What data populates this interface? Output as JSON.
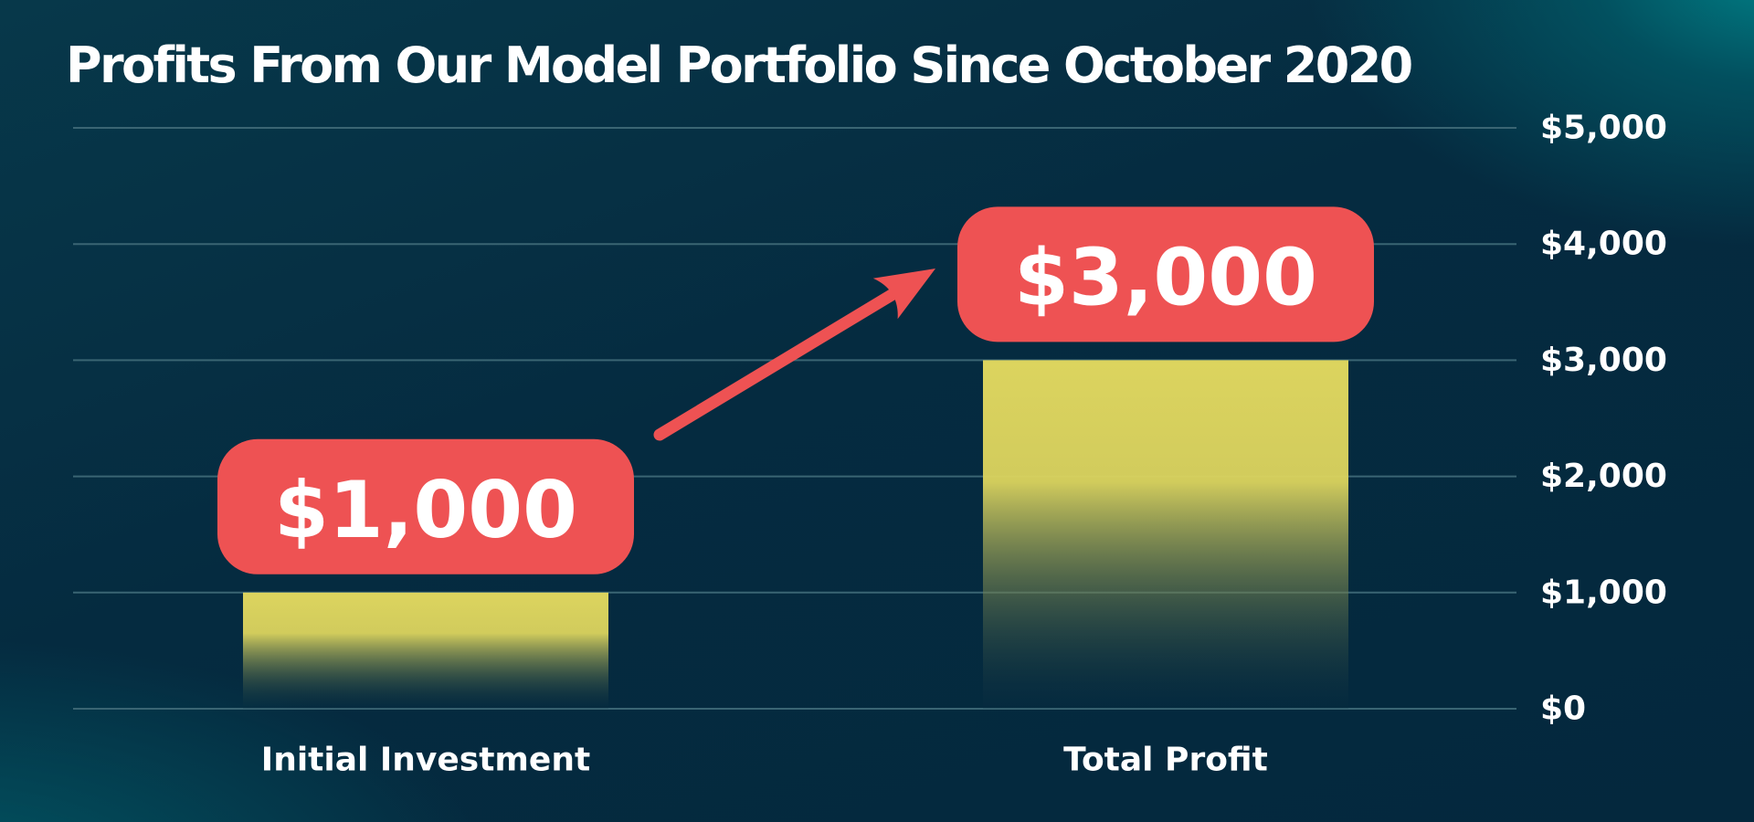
{
  "chart_data": {
    "type": "bar",
    "title": "Profits From Our Model Portfolio Since October 2020",
    "categories": [
      "Initial Investment",
      "Total Profit"
    ],
    "values": [
      1000,
      3000
    ],
    "value_labels": [
      "$1,000",
      "$3,000"
    ],
    "ylim": [
      0,
      5000
    ],
    "yticks": [
      0,
      1000,
      2000,
      3000,
      4000,
      5000
    ],
    "ytick_labels": [
      "$0",
      "$1,000",
      "$2,000",
      "$3,000",
      "$4,000",
      "$5,000"
    ],
    "xlabel": "",
    "ylabel": "",
    "yaxis_side": "right",
    "grid": true,
    "legend": false,
    "annotations": [
      {
        "type": "arrow",
        "from_category": "Initial Investment",
        "to_category": "Total Profit"
      }
    ],
    "colors": {
      "bar_top": "#dcd45e",
      "bar_bottom": "#062c40",
      "label_pill": "#ee5253",
      "text": "#ffffff",
      "gridline": "#3a6573",
      "background": "#062c40",
      "background_glow": "#00848a"
    }
  }
}
